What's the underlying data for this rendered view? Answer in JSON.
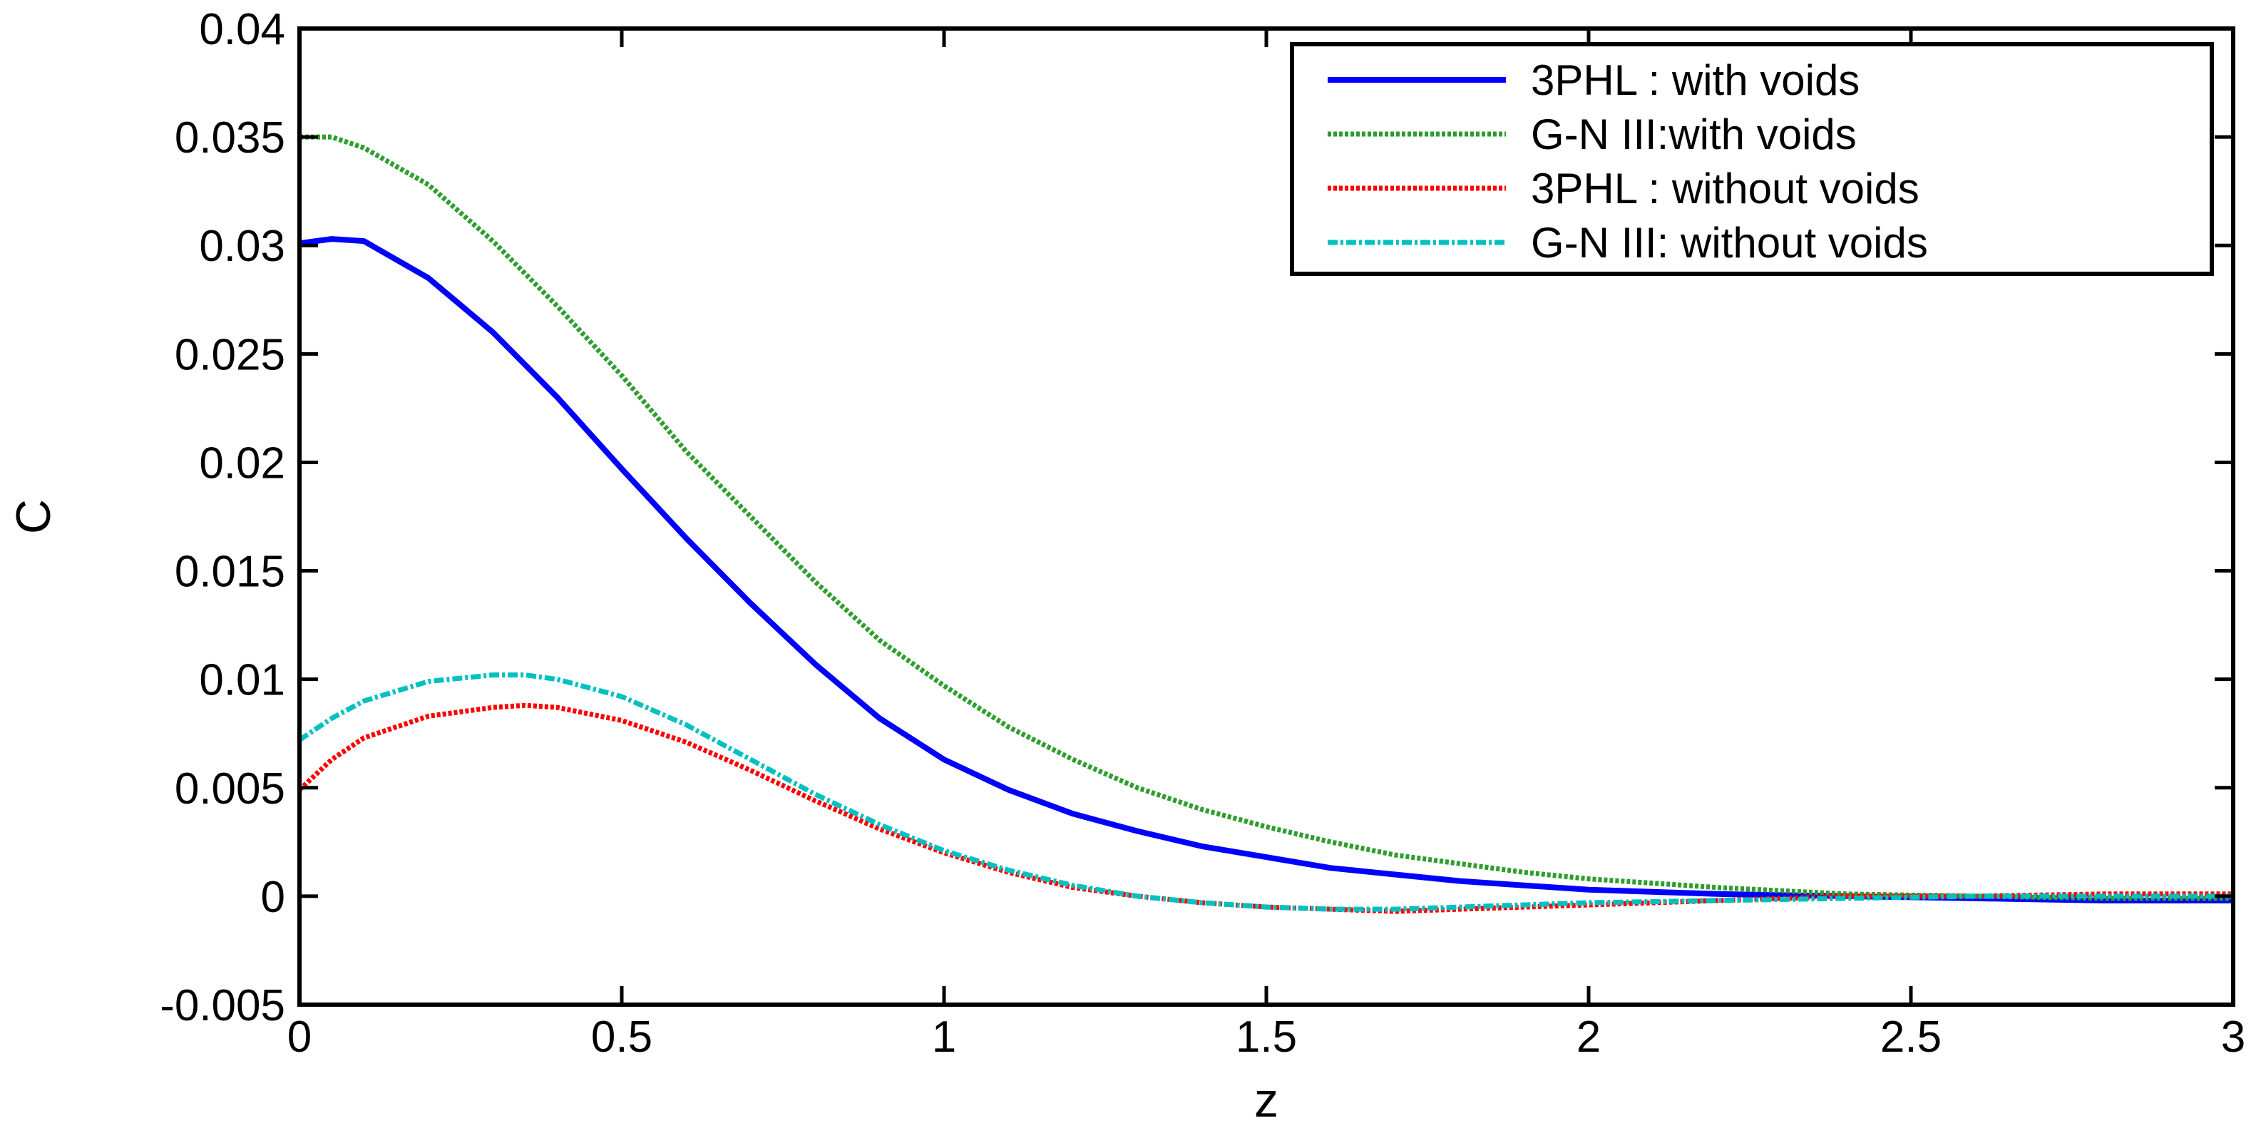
{
  "chart_data": {
    "type": "line",
    "title": "",
    "xlabel": "z",
    "ylabel": "C",
    "xlim": [
      0,
      3
    ],
    "ylim": [
      -0.005,
      0.04
    ],
    "xticks": [
      0,
      0.5,
      1,
      1.5,
      2,
      2.5,
      3
    ],
    "xtick_labels": [
      "0",
      "0.5",
      "1",
      "1.5",
      "2",
      "2.5",
      "3"
    ],
    "yticks": [
      -0.005,
      0,
      0.005,
      0.01,
      0.015,
      0.02,
      0.025,
      0.03,
      0.035,
      0.04
    ],
    "ytick_labels": [
      "-0.005",
      "0",
      "0.005",
      "0.01",
      "0.015",
      "0.02",
      "0.025",
      "0.03",
      "0.035",
      "0.04"
    ],
    "grid": false,
    "legend_position": "top-right",
    "series": [
      {
        "name": "3PHL : with voids",
        "color": "#0000ff",
        "style": "solid",
        "x": [
          0,
          0.05,
          0.1,
          0.2,
          0.3,
          0.4,
          0.5,
          0.6,
          0.7,
          0.8,
          0.9,
          1.0,
          1.1,
          1.2,
          1.3,
          1.4,
          1.5,
          1.6,
          1.7,
          1.8,
          1.9,
          2.0,
          2.2,
          2.4,
          2.6,
          2.8,
          3.0
        ],
        "y": [
          0.0301,
          0.0303,
          0.0302,
          0.0285,
          0.026,
          0.023,
          0.0197,
          0.0165,
          0.0135,
          0.0107,
          0.0082,
          0.0063,
          0.0049,
          0.0038,
          0.003,
          0.0023,
          0.0018,
          0.0013,
          0.001,
          0.0007,
          0.0005,
          0.0003,
          0.0001,
          0.0,
          -0.0001,
          -0.0002,
          -0.0002
        ]
      },
      {
        "name": "G-N III:with voids",
        "color": "#2e9e2e",
        "style": "dotted",
        "x": [
          0,
          0.05,
          0.1,
          0.2,
          0.3,
          0.4,
          0.5,
          0.6,
          0.7,
          0.8,
          0.9,
          1.0,
          1.1,
          1.2,
          1.3,
          1.4,
          1.5,
          1.6,
          1.7,
          1.8,
          1.9,
          2.0,
          2.2,
          2.4,
          2.6,
          2.8,
          3.0
        ],
        "y": [
          0.035,
          0.035,
          0.0345,
          0.0328,
          0.0302,
          0.0272,
          0.024,
          0.0205,
          0.0175,
          0.0145,
          0.0118,
          0.0097,
          0.0078,
          0.0063,
          0.005,
          0.004,
          0.0032,
          0.0025,
          0.0019,
          0.0015,
          0.0011,
          0.0008,
          0.0004,
          0.0001,
          0.0,
          -0.0001,
          -0.0001
        ]
      },
      {
        "name": "3PHL : without voids",
        "color": "#ff0000",
        "style": "dotted",
        "x": [
          0,
          0.05,
          0.1,
          0.2,
          0.3,
          0.35,
          0.4,
          0.5,
          0.6,
          0.7,
          0.8,
          0.9,
          1.0,
          1.1,
          1.2,
          1.3,
          1.4,
          1.5,
          1.6,
          1.7,
          1.8,
          1.9,
          2.0,
          2.2,
          2.4,
          2.6,
          2.8,
          3.0
        ],
        "y": [
          0.0049,
          0.0063,
          0.0073,
          0.0083,
          0.0087,
          0.0088,
          0.0087,
          0.0081,
          0.0071,
          0.0058,
          0.0044,
          0.0031,
          0.002,
          0.0011,
          0.0004,
          0.0,
          -0.0003,
          -0.0005,
          -0.0006,
          -0.0007,
          -0.0006,
          -0.0005,
          -0.0004,
          -0.0002,
          0.0,
          0.0,
          0.0001,
          0.0001
        ]
      },
      {
        "name": "G-N III: without voids",
        "color": "#00c0c0",
        "style": "dash-dot",
        "x": [
          0,
          0.05,
          0.1,
          0.2,
          0.3,
          0.35,
          0.4,
          0.5,
          0.6,
          0.7,
          0.8,
          0.9,
          1.0,
          1.1,
          1.2,
          1.3,
          1.4,
          1.5,
          1.6,
          1.7,
          1.8,
          1.9,
          2.0,
          2.2,
          2.4,
          2.6,
          2.8,
          3.0
        ],
        "y": [
          0.0072,
          0.0082,
          0.009,
          0.0099,
          0.0102,
          0.0102,
          0.01,
          0.0092,
          0.0079,
          0.0063,
          0.0047,
          0.0033,
          0.0021,
          0.0012,
          0.0005,
          0.0,
          -0.0003,
          -0.0005,
          -0.0006,
          -0.0006,
          -0.0005,
          -0.0004,
          -0.0003,
          -0.0002,
          -0.0001,
          0.0,
          0.0,
          0.0
        ]
      }
    ]
  }
}
